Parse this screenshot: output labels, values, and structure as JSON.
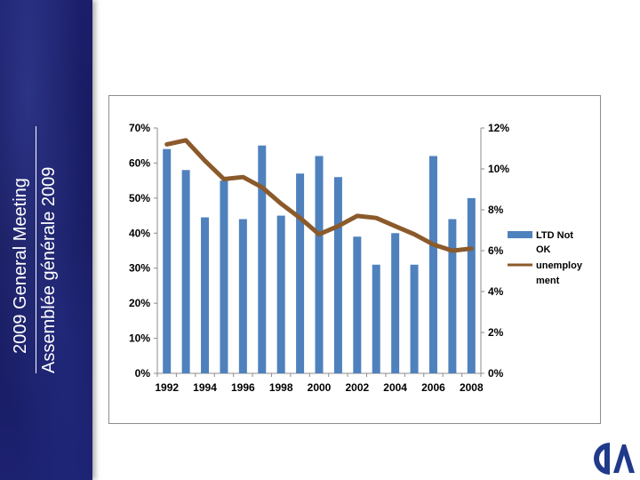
{
  "sidebar": {
    "title_en": "2009 General Meeting",
    "title_fr": "Assemblée générale 2009"
  },
  "logo": {
    "name": "CIA logo"
  },
  "colors": {
    "bar": "#4f81bd",
    "line": "#8b5a2b",
    "sidebar": "#1b1f6b",
    "logo": "#1f3a8a"
  },
  "chart_data": {
    "type": "bar",
    "categories": [
      "1992",
      "1993",
      "1994",
      "1995",
      "1996",
      "1997",
      "1998",
      "1999",
      "2000",
      "2001",
      "2002",
      "2003",
      "2004",
      "2005",
      "2006",
      "2007",
      "2008"
    ],
    "x_tick_labels": [
      "1992",
      "1994",
      "1996",
      "1998",
      "2000",
      "2002",
      "2004",
      "2006",
      "2008"
    ],
    "series": [
      {
        "name": "LTD Not OK",
        "type": "bar",
        "axis": "left",
        "values": [
          64,
          58,
          44.5,
          55,
          44,
          65,
          45,
          57,
          62,
          56,
          39,
          31,
          40,
          31,
          62,
          44,
          50
        ]
      },
      {
        "name": "unemployment",
        "type": "line",
        "axis": "right",
        "values": [
          11.2,
          11.4,
          10.4,
          9.5,
          9.6,
          9.1,
          8.3,
          7.6,
          6.8,
          7.2,
          7.7,
          7.6,
          7.2,
          6.8,
          6.3,
          6.0,
          6.1
        ]
      }
    ],
    "y_left": {
      "ticks": [
        0,
        10,
        20,
        30,
        40,
        50,
        60,
        70
      ],
      "labels": [
        "0%",
        "10%",
        "20%",
        "30%",
        "40%",
        "50%",
        "60%",
        "70%"
      ],
      "ylim": [
        0,
        70
      ]
    },
    "y_right": {
      "ticks": [
        0,
        2,
        4,
        6,
        8,
        10,
        12
      ],
      "labels": [
        "0%",
        "2%",
        "4%",
        "6%",
        "8%",
        "10%",
        "12%"
      ],
      "ylim": [
        0,
        12
      ]
    },
    "legend": {
      "position": "right",
      "bar_label_lines": [
        "LTD Not",
        "OK"
      ],
      "line_label_lines": [
        "unemploy",
        "ment"
      ]
    },
    "title": "",
    "xlabel": "",
    "ylabel": "",
    "grid": false
  }
}
